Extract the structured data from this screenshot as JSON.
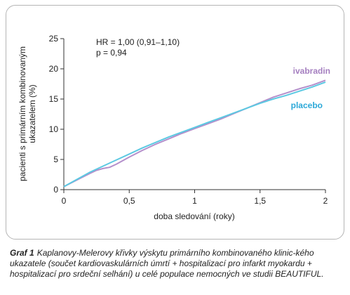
{
  "chart_data": {
    "type": "line",
    "xlabel": "doba sledování (roky)",
    "ylabel_lines": [
      "pacienti s primárním kombinovaným",
      "ukazatelem (%)"
    ],
    "x_ticks": [
      "0",
      "0,5",
      "1",
      "1,5",
      "2"
    ],
    "x_tick_values": [
      0,
      0.5,
      1,
      1.5,
      2
    ],
    "y_ticks": [
      "0",
      "5",
      "10",
      "15",
      "20",
      "25"
    ],
    "y_tick_values": [
      0,
      5,
      10,
      15,
      20,
      25
    ],
    "xlim": [
      0,
      2
    ],
    "ylim": [
      0,
      25
    ],
    "grid": false,
    "annotation_lines": [
      "HR = 1,00 (0,91–1,10)",
      "p = 0,94"
    ],
    "series": [
      {
        "name": "ivabradin",
        "color": "#b48fcb",
        "label_color": "#a57fc0",
        "x": [
          0,
          0.1,
          0.2,
          0.25,
          0.3,
          0.35,
          0.4,
          0.5,
          0.6,
          0.7,
          0.8,
          0.9,
          1.0,
          1.1,
          1.2,
          1.3,
          1.4,
          1.5,
          1.6,
          1.7,
          1.8,
          1.9,
          2.0
        ],
        "values": [
          0.5,
          1.6,
          2.7,
          3.2,
          3.5,
          3.7,
          4.2,
          5.4,
          6.5,
          7.5,
          8.4,
          9.3,
          10.1,
          10.9,
          11.7,
          12.6,
          13.5,
          14.4,
          15.3,
          16.0,
          16.7,
          17.3,
          18.1
        ]
      },
      {
        "name": "placebo",
        "color": "#5cc9e2",
        "label_color": "#2ba8d8",
        "x": [
          0,
          0.1,
          0.2,
          0.3,
          0.4,
          0.5,
          0.6,
          0.7,
          0.8,
          0.9,
          1.0,
          1.1,
          1.2,
          1.3,
          1.4,
          1.5,
          1.6,
          1.7,
          1.8,
          1.9,
          2.0
        ],
        "values": [
          0.5,
          1.7,
          2.9,
          3.9,
          4.9,
          5.9,
          6.9,
          7.8,
          8.7,
          9.5,
          10.3,
          11.1,
          11.9,
          12.7,
          13.5,
          14.3,
          15.0,
          15.6,
          16.3,
          17.0,
          17.8
        ]
      }
    ]
  },
  "caption": {
    "label": "Graf 1",
    "text": "Kaplanovy-Melerovy křivky výskytu primárního kombinovaného klinic-kého ukazatele (součet kardiovaskulárních úmrtí + hospitalizací pro infarkt myokardu + hospitalizací pro srdeční selhání) u celé populace nemocných ve studii BEAUTIFUL."
  }
}
